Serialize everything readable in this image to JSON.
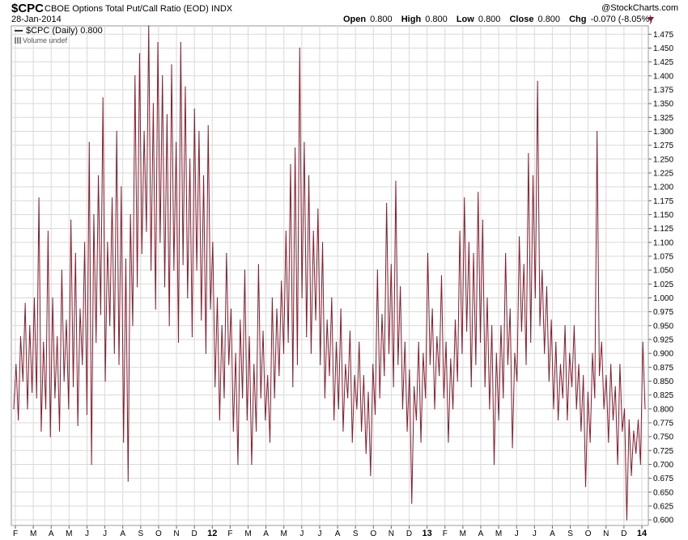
{
  "header": {
    "symbol": "$CPC",
    "description": "CBOE Options Total Put/Call Ratio (EOD)",
    "exchange": "INDX",
    "date": "28-Jan-2014",
    "brand": "@StockCharts.com",
    "open_label": "Open",
    "open": "0.800",
    "high_label": "High",
    "high": "0.800",
    "low_label": "Low",
    "low": "0.800",
    "close_label": "Close",
    "close": "0.800",
    "chg_label": "Chg",
    "chg": "-0.070 (-8.05%)"
  },
  "legend": {
    "series": "$CPC (Daily) 0.800",
    "volume": "Volume undef"
  },
  "colors": {
    "line": "#8b1a2b",
    "grid": "#d9d9d9",
    "axis": "#999999"
  },
  "chart_data": {
    "type": "line",
    "title": "CBOE Options Total Put/Call Ratio (EOD)",
    "ylim": [
      0.59,
      1.49
    ],
    "yticks": [
      "1.475",
      "1.450",
      "1.425",
      "1.400",
      "1.375",
      "1.350",
      "1.325",
      "1.300",
      "1.275",
      "1.250",
      "1.225",
      "1.200",
      "1.175",
      "1.150",
      "1.125",
      "1.100",
      "1.075",
      "1.050",
      "1.025",
      "1.000",
      "0.975",
      "0.950",
      "0.925",
      "0.900",
      "0.875",
      "0.850",
      "0.825",
      "0.800",
      "0.775",
      "0.750",
      "0.725",
      "0.700",
      "0.675",
      "0.650",
      "0.625",
      "0.600"
    ],
    "xticks": [
      {
        "label": "F",
        "bold": false
      },
      {
        "label": "M",
        "bold": false
      },
      {
        "label": "A",
        "bold": false
      },
      {
        "label": "M",
        "bold": false
      },
      {
        "label": "J",
        "bold": false
      },
      {
        "label": "J",
        "bold": false
      },
      {
        "label": "A",
        "bold": false
      },
      {
        "label": "S",
        "bold": false
      },
      {
        "label": "O",
        "bold": false
      },
      {
        "label": "N",
        "bold": false
      },
      {
        "label": "D",
        "bold": false
      },
      {
        "label": "12",
        "bold": true
      },
      {
        "label": "F",
        "bold": false
      },
      {
        "label": "M",
        "bold": false
      },
      {
        "label": "A",
        "bold": false
      },
      {
        "label": "M",
        "bold": false
      },
      {
        "label": "J",
        "bold": false
      },
      {
        "label": "J",
        "bold": false
      },
      {
        "label": "A",
        "bold": false
      },
      {
        "label": "S",
        "bold": false
      },
      {
        "label": "O",
        "bold": false
      },
      {
        "label": "N",
        "bold": false
      },
      {
        "label": "D",
        "bold": false
      },
      {
        "label": "13",
        "bold": true
      },
      {
        "label": "F",
        "bold": false
      },
      {
        "label": "M",
        "bold": false
      },
      {
        "label": "A",
        "bold": false
      },
      {
        "label": "M",
        "bold": false
      },
      {
        "label": "J",
        "bold": false
      },
      {
        "label": "J",
        "bold": false
      },
      {
        "label": "A",
        "bold": false
      },
      {
        "label": "S",
        "bold": false
      },
      {
        "label": "O",
        "bold": false
      },
      {
        "label": "N",
        "bold": false
      },
      {
        "label": "D",
        "bold": false
      },
      {
        "label": "14",
        "bold": true
      }
    ],
    "grid": true,
    "series": [
      {
        "values": [
          0.8,
          0.88,
          0.78,
          0.93,
          0.85,
          0.99,
          0.8,
          0.95,
          0.83,
          1.0,
          0.82,
          1.18,
          0.76,
          0.92,
          0.8,
          1.12,
          0.75,
          1.0,
          0.82,
          0.93,
          0.76,
          1.05,
          0.85,
          0.96,
          0.8,
          1.14,
          0.84,
          1.08,
          0.77,
          0.98,
          0.88,
          1.1,
          0.79,
          1.28,
          0.7,
          1.15,
          0.92,
          1.22,
          0.97,
          1.36,
          0.85,
          1.1,
          0.95,
          1.18,
          0.9,
          1.3,
          0.88,
          1.2,
          0.74,
          1.07,
          0.67,
          1.15,
          0.95,
          1.4,
          1.02,
          1.44,
          1.08,
          1.3,
          1.12,
          1.49,
          1.05,
          1.35,
          0.98,
          1.46,
          1.1,
          1.4,
          1.02,
          1.33,
          0.95,
          1.42,
          1.05,
          1.28,
          0.92,
          1.46,
          1.06,
          1.38,
          1.0,
          1.25,
          0.93,
          1.34,
          1.05,
          1.3,
          0.96,
          1.22,
          0.9,
          1.31,
          0.98,
          1.1,
          0.84,
          1.0,
          0.78,
          0.95,
          0.82,
          1.08,
          0.88,
          0.98,
          0.76,
          0.9,
          0.7,
          0.96,
          0.82,
          1.05,
          0.78,
          0.93,
          0.7,
          0.88,
          0.76,
          1.06,
          0.82,
          0.94,
          0.78,
          0.86,
          0.74,
          1.0,
          0.82,
          0.98,
          0.86,
          1.03,
          0.9,
          1.12,
          0.92,
          1.24,
          0.84,
          1.27,
          0.88,
          1.45,
          1.0,
          1.28,
          0.93,
          1.22,
          0.9,
          1.12,
          0.96,
          1.16,
          0.88,
          1.1,
          0.82,
          0.96,
          0.86,
          1.0,
          0.78,
          0.92,
          0.8,
          0.98,
          0.76,
          0.88,
          0.82,
          0.94,
          0.74,
          0.86,
          0.8,
          0.92,
          0.76,
          0.86,
          0.72,
          0.83,
          0.68,
          0.88,
          0.79,
          1.05,
          0.82,
          0.97,
          0.86,
          1.17,
          0.9,
          1.06,
          0.84,
          1.21,
          0.88,
          1.02,
          0.8,
          0.92,
          0.76,
          0.87,
          0.63,
          0.84,
          0.78,
          0.92,
          0.74,
          0.9,
          0.82,
          1.08,
          0.88,
          0.98,
          0.8,
          0.93,
          0.86,
          1.04,
          0.82,
          0.92,
          0.74,
          0.89,
          0.8,
          0.96,
          0.85,
          1.12,
          0.9,
          1.18,
          0.94,
          1.1,
          0.84,
          1.08,
          0.88,
          1.19,
          0.92,
          1.14,
          0.84,
          1.0,
          0.8,
          0.95,
          0.7,
          0.9,
          0.78,
          0.95,
          0.82,
          1.08,
          0.88,
          0.98,
          0.73,
          0.9,
          0.85,
          1.11,
          0.94,
          1.06,
          0.88,
          1.26,
          0.92,
          1.22,
          1.0,
          1.39,
          0.95,
          1.05,
          0.9,
          1.02,
          0.85,
          0.96,
          0.8,
          0.92,
          0.78,
          0.88,
          0.82,
          0.95,
          0.78,
          0.9,
          0.84,
          0.95,
          0.8,
          0.88,
          0.76,
          0.86,
          0.66,
          0.83,
          0.74,
          0.9,
          0.82,
          1.3,
          0.86,
          0.92,
          0.8,
          0.86,
          0.74,
          0.88,
          0.78,
          0.84,
          0.7,
          0.88,
          0.76,
          0.8,
          0.6,
          0.78,
          0.68,
          0.76,
          0.72,
          0.78,
          0.7,
          0.92,
          0.8
        ]
      }
    ]
  }
}
